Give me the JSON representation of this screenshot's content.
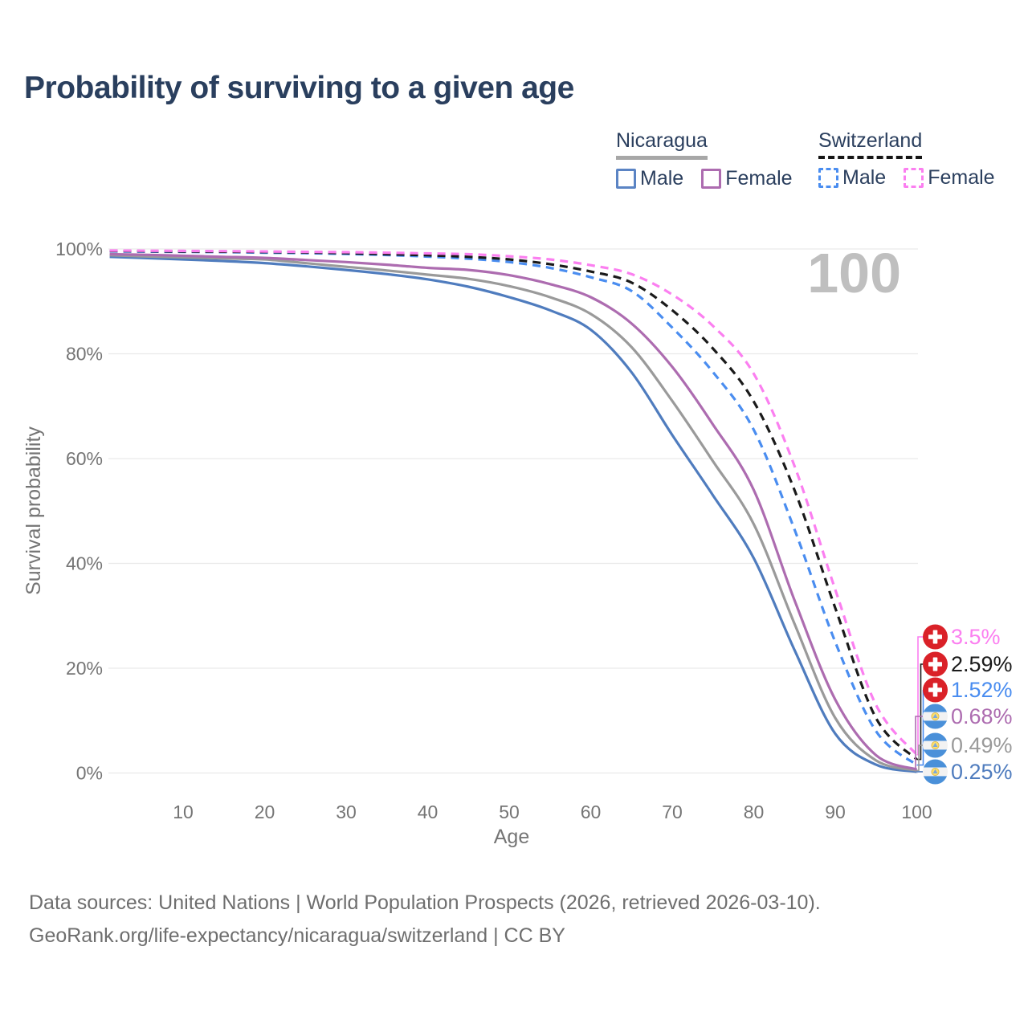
{
  "title": "Probability of surviving to a given age",
  "legend": {
    "groups": [
      {
        "name": "Nicaragua",
        "line_style": "solid",
        "underline_color": "#a7a7a7",
        "items": [
          {
            "label": "Male",
            "color": "#5b84c4",
            "dashed": false
          },
          {
            "label": "Female",
            "color": "#ad6cb0",
            "dashed": false
          }
        ]
      },
      {
        "name": "Switzerland",
        "line_style": "dashed",
        "underline_color": "#161616",
        "items": [
          {
            "label": "Male",
            "color": "#4a8df0",
            "dashed": true
          },
          {
            "label": "Female",
            "color": "#fb7ff0",
            "dashed": true
          }
        ]
      }
    ]
  },
  "chart_data": {
    "type": "line",
    "title": "Probability of surviving to a given age",
    "xlabel": "Age",
    "ylabel": "Survival probability",
    "xlim": [
      1,
      100
    ],
    "ylim": [
      0,
      100
    ],
    "grid": "horizontal",
    "legend_position": "top-right",
    "hover_age_label": "100",
    "x_ticks": [
      10,
      20,
      30,
      40,
      50,
      60,
      70,
      80,
      90,
      100
    ],
    "y_ticks": [
      {
        "value": 0,
        "label": "0%"
      },
      {
        "value": 20,
        "label": "20%"
      },
      {
        "value": 40,
        "label": "40%"
      },
      {
        "value": 60,
        "label": "60%"
      },
      {
        "value": 80,
        "label": "80%"
      },
      {
        "value": 100,
        "label": "100%"
      }
    ],
    "ages": [
      1,
      5,
      10,
      15,
      20,
      25,
      30,
      35,
      40,
      45,
      50,
      55,
      60,
      65,
      70,
      75,
      80,
      85,
      90,
      95,
      100
    ],
    "series": [
      {
        "name": "Nicaragua Male",
        "country": "Nicaragua",
        "sex": "Male",
        "flag": "nicaragua",
        "color": "#4f7cbe",
        "dashed": false,
        "end_label": "0.25%",
        "values": [
          98.5,
          98.3,
          98.0,
          97.7,
          97.3,
          96.7,
          96.0,
          95.2,
          94.2,
          92.8,
          90.8,
          88.3,
          84.6,
          76.5,
          64.5,
          53.0,
          41.0,
          23.5,
          7.5,
          1.6,
          0.25
        ]
      },
      {
        "name": "Nicaragua Total",
        "country": "Nicaragua",
        "sex": "Both",
        "flag": "nicaragua",
        "color": "#9a9a9a",
        "dashed": false,
        "end_label": "0.49%",
        "values": [
          98.8,
          98.6,
          98.4,
          98.2,
          98.0,
          97.3,
          96.6,
          95.9,
          95.1,
          94.3,
          92.9,
          90.8,
          87.6,
          81.3,
          71.0,
          59.5,
          47.5,
          28.5,
          10.5,
          2.4,
          0.49
        ]
      },
      {
        "name": "Nicaragua Female",
        "country": "Nicaragua",
        "sex": "Female",
        "flag": "nicaragua",
        "color": "#ad6cb0",
        "dashed": false,
        "end_label": "0.68%",
        "values": [
          99.0,
          98.9,
          98.7,
          98.5,
          98.3,
          97.9,
          97.5,
          97.0,
          96.4,
          96.0,
          95.0,
          93.3,
          90.8,
          85.8,
          77.5,
          66.5,
          54.0,
          33.0,
          14.0,
          3.4,
          0.68
        ]
      },
      {
        "name": "Switzerland Male",
        "country": "Switzerland",
        "sex": "Male",
        "flag": "switzerland",
        "color": "#4a8df0",
        "dashed": true,
        "end_label": "1.52%",
        "values": [
          99.55,
          99.5,
          99.45,
          99.4,
          99.3,
          99.2,
          99.05,
          98.85,
          98.55,
          98.15,
          97.5,
          96.4,
          94.6,
          92.0,
          85.0,
          76.5,
          65.5,
          46.5,
          25.0,
          8.0,
          1.52
        ]
      },
      {
        "name": "Switzerland Total",
        "country": "Switzerland",
        "sex": "Both",
        "flag": "switzerland",
        "color": "#1a1a1a",
        "dashed": true,
        "end_label": "2.59%",
        "values": [
          99.62,
          99.58,
          99.53,
          99.48,
          99.42,
          99.33,
          99.2,
          99.0,
          98.8,
          98.5,
          98.0,
          97.1,
          95.7,
          93.6,
          88.3,
          81.0,
          70.9,
          54.0,
          31.5,
          10.5,
          2.59
        ]
      },
      {
        "name": "Switzerland Female",
        "country": "Switzerland",
        "sex": "Female",
        "flag": "switzerland",
        "color": "#fb7ff0",
        "dashed": true,
        "end_label": "3.5%",
        "values": [
          99.7,
          99.67,
          99.63,
          99.58,
          99.52,
          99.45,
          99.38,
          99.28,
          99.15,
          99.0,
          98.6,
          98.0,
          96.9,
          95.2,
          91.3,
          85.3,
          76.2,
          58.6,
          35.0,
          13.0,
          3.5
        ]
      }
    ]
  },
  "footer": {
    "line1": "Data sources: United Nations | World Population Prospects (2026, retrieved 2026-03-10).",
    "line2": "GeoRank.org/life-expectancy/nicaragua/switzerland | CC BY"
  },
  "colors": {
    "title_text": "#2a3f5e",
    "axis_text": "#757575",
    "gridline": "#e9e9e9",
    "watermark": "#bfbfbf",
    "swiss_flag_red": "#da2128",
    "nicaragua_flag_blue": "#4a90d9"
  }
}
